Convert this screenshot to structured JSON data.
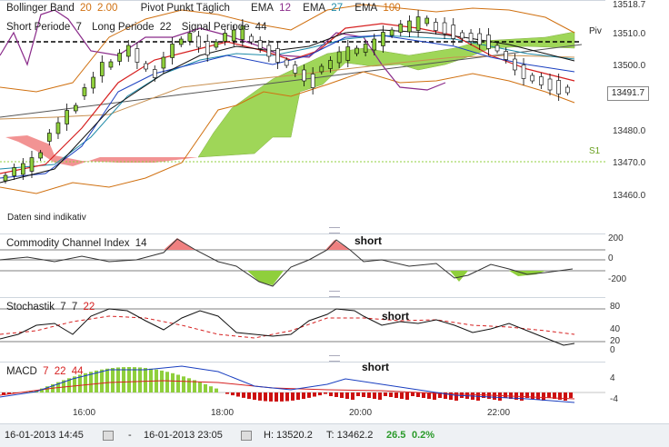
{
  "main_legend": {
    "bollinger_label": "Bollinger Band",
    "bollinger_p1": "20",
    "bollinger_p2": "2.00",
    "pivot_label": "Pivot Punkt Täglich",
    "ema1_label": "EMA",
    "ema1_val": "12",
    "ema2_label": "EMA",
    "ema2_val": "27",
    "ema3_label": "EMA",
    "ema3_val": "100",
    "short_label": "Short Periode",
    "short_val": "7",
    "long_label": "Long Periode",
    "long_val": "22",
    "signal_label": "Signal Periode",
    "signal_val": "44"
  },
  "main_axis": {
    "ticks": [
      "13518.7",
      "13510.0",
      "13500.0",
      "13480.0",
      "13470.0",
      "13460.0"
    ],
    "current_price": "13491.7",
    "pivot_label": "Piv",
    "s1_label": "S1"
  },
  "disclaimer": "Daten sind indikativ",
  "cci": {
    "label": "Commodity Channel Index",
    "period": "14",
    "ticks": [
      "200",
      "0",
      "-200"
    ],
    "signal": "short"
  },
  "stoch": {
    "label": "Stochastik",
    "p1": "7",
    "p2": "7",
    "p3": "22",
    "ticks": [
      "80",
      "40",
      "20",
      "0"
    ],
    "signal": "short"
  },
  "macd": {
    "label": "MACD",
    "p1": "7",
    "p2": "22",
    "p3": "44",
    "ticks": [
      "4",
      "-4"
    ],
    "signal": "short"
  },
  "time_axis": [
    "16:00",
    "18:00",
    "20:00",
    "22:00"
  ],
  "footer": {
    "start": "16-01-2013 14:45",
    "dash": "-",
    "end": "16-01-2013 23:05",
    "high": "H: 13520.2",
    "low": "T: 13462.2",
    "change": "26.5",
    "change_pct": "0.2%"
  },
  "colors": {
    "ema12": "#d62020",
    "ema27": "#1e8aa8",
    "ema100": "#d07010",
    "bollinger": "#8a2b8a",
    "ichimoku_green": "#8fcf3c",
    "ichimoku_red": "#f08080"
  }
}
